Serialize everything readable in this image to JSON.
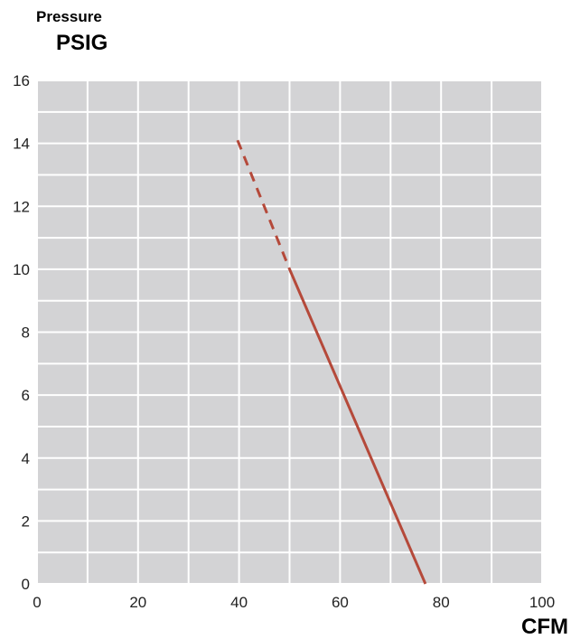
{
  "chart_data": {
    "type": "line",
    "ylabel_line1": "Pressure",
    "ylabel_line2": "PSIG",
    "xlabel": "CFM",
    "xlim": [
      0,
      100
    ],
    "ylim": [
      0,
      16
    ],
    "x_ticks": [
      0,
      20,
      40,
      60,
      80,
      100
    ],
    "y_ticks": [
      0,
      2,
      4,
      6,
      8,
      10,
      12,
      14,
      16
    ],
    "x_gridlines": [
      0,
      10,
      20,
      30,
      40,
      50,
      60,
      70,
      80,
      90,
      100
    ],
    "y_gridlines": [
      0,
      1,
      2,
      3,
      4,
      5,
      6,
      7,
      8,
      9,
      10,
      11,
      12,
      13,
      14,
      15,
      16
    ],
    "grid": true,
    "series": [
      {
        "style": "dashed",
        "color": "#b5493a",
        "points": [
          [
            39.7,
            14.1
          ],
          [
            50,
            10.0
          ]
        ]
      },
      {
        "style": "solid",
        "color": "#b5493a",
        "points": [
          [
            50,
            10.0
          ],
          [
            76.9,
            0
          ]
        ]
      }
    ],
    "colors": {
      "plot_background": "#d3d3d5",
      "gridline": "#ffffff"
    }
  }
}
